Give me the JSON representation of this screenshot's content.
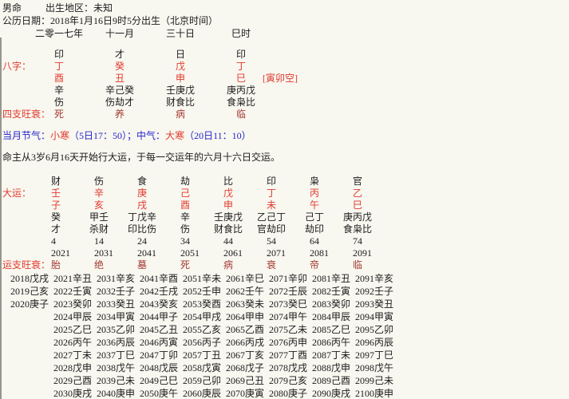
{
  "colors": {
    "background": "#f8f7f0",
    "accent_red": "#e23a2c",
    "wangshuai_dark_red": "#a33c33",
    "jieqi_blue": "#2424cc",
    "text_black": "#1b1b1b",
    "left_border_gray": "#97968c"
  },
  "header": {
    "gender": "男命",
    "birthplace": "出生地区：未知",
    "solar_date": "公历日期：2018年1月16日9时5分出生（北京时间）",
    "lunar_pillars": [
      "二零一七年",
      "十一月",
      "三十日",
      "巳时"
    ]
  },
  "bazi": {
    "label": "八字：",
    "gods": [
      "印",
      "才",
      "日",
      "印"
    ],
    "stems": [
      "丁",
      "癸",
      "戊",
      "丁"
    ],
    "branches": [
      "酉",
      "丑",
      "申",
      "巳"
    ],
    "kongwang": "[寅卯空]",
    "hidden_stems": [
      "辛",
      "辛己癸",
      "壬庚戊",
      "庚丙戊"
    ],
    "hidden_gods": [
      "伤",
      "伤劫才",
      "财食比",
      "食枭比"
    ],
    "wangshuai_label": "四支旺衰：",
    "wangshuai": [
      "死",
      "养",
      "病",
      "临"
    ]
  },
  "jieqi": {
    "prefix": "当月节气：",
    "jie_name": "小寒",
    "jie_time": "（5日17：50）；",
    "zhong_label": "中气：",
    "zhong_name": "大寒",
    "zhong_time": "（20日11：10）"
  },
  "qiyun_note": "命主从3岁6月16天开始行大运，于每一交运年的六月十六日交运。",
  "dayun": {
    "label": "大运：",
    "gods": [
      "财",
      "伤",
      "食",
      "劫",
      "比",
      "印",
      "枭",
      "官"
    ],
    "stems": [
      "壬",
      "辛",
      "庚",
      "己",
      "戊",
      "丁",
      "丙",
      "乙"
    ],
    "branches": [
      "子",
      "亥",
      "戌",
      "酉",
      "申",
      "未",
      "午",
      "巳"
    ],
    "hidden_stems": [
      "癸",
      "甲壬",
      "丁戊辛",
      "辛",
      "壬庚戊",
      "乙己丁",
      "己丁",
      "庚丙戊"
    ],
    "hidden_gods": [
      "才",
      "杀财",
      "印比伤",
      "伤",
      "财食比",
      "官劫印",
      "劫印",
      "食枭比"
    ],
    "start_ages": [
      "4",
      "14",
      "24",
      "34",
      "44",
      "54",
      "64",
      "74"
    ],
    "start_years": [
      "2021",
      "2031",
      "2041",
      "2051",
      "2061",
      "2071",
      "2081",
      "2091"
    ],
    "wangshuai_label": "运支旺衰：",
    "wangshuai": [
      "胎",
      "绝",
      "墓",
      "死",
      "病",
      "衰",
      "帝",
      "临"
    ]
  },
  "liunian": {
    "pre_dayun": [
      "2018戊戌",
      "2019己亥",
      "2020庚子"
    ],
    "columns": [
      [
        "2021辛丑",
        "2022壬寅",
        "2023癸卯",
        "2024甲辰",
        "2025乙巳",
        "2026丙午",
        "2027丁未",
        "2028戊申",
        "2029己酉",
        "2030庚戌"
      ],
      [
        "2031辛亥",
        "2032壬子",
        "2033癸丑",
        "2034甲寅",
        "2035乙卯",
        "2036丙辰",
        "2037丁巳",
        "2038戊午",
        "2039己未",
        "2040庚申"
      ],
      [
        "2041辛酉",
        "2042壬戌",
        "2043癸亥",
        "2044甲子",
        "2045乙丑",
        "2046丙寅",
        "2047丁卯",
        "2048戊辰",
        "2049己巳",
        "2050庚午"
      ],
      [
        "2051辛未",
        "2052壬申",
        "2053癸酉",
        "2054甲戌",
        "2055乙亥",
        "2056丙子",
        "2057丁丑",
        "2058戊寅",
        "2059己卯",
        "2060庚辰"
      ],
      [
        "2061辛巳",
        "2062壬午",
        "2063癸未",
        "2064甲申",
        "2065乙酉",
        "2066丙戌",
        "2067丁亥",
        "2068戊子",
        "2069己丑",
        "2070庚寅"
      ],
      [
        "2071辛卯",
        "2072壬辰",
        "2073癸巳",
        "2074甲午",
        "2075乙未",
        "2076丙申",
        "2077丁酉",
        "2078戊戌",
        "2079己亥",
        "2080庚子"
      ],
      [
        "2081辛丑",
        "2082壬寅",
        "2083癸卯",
        "2084甲辰",
        "2085乙巳",
        "2086丙午",
        "2087丁未",
        "2088戊申",
        "2089己酉",
        "2090庚戌"
      ],
      [
        "2091辛亥",
        "2092壬子",
        "2093癸丑",
        "2094甲寅",
        "2095乙卯",
        "2096丙辰",
        "2097丁巳",
        "2098戊午",
        "2099己未",
        "2100庚申"
      ]
    ]
  }
}
